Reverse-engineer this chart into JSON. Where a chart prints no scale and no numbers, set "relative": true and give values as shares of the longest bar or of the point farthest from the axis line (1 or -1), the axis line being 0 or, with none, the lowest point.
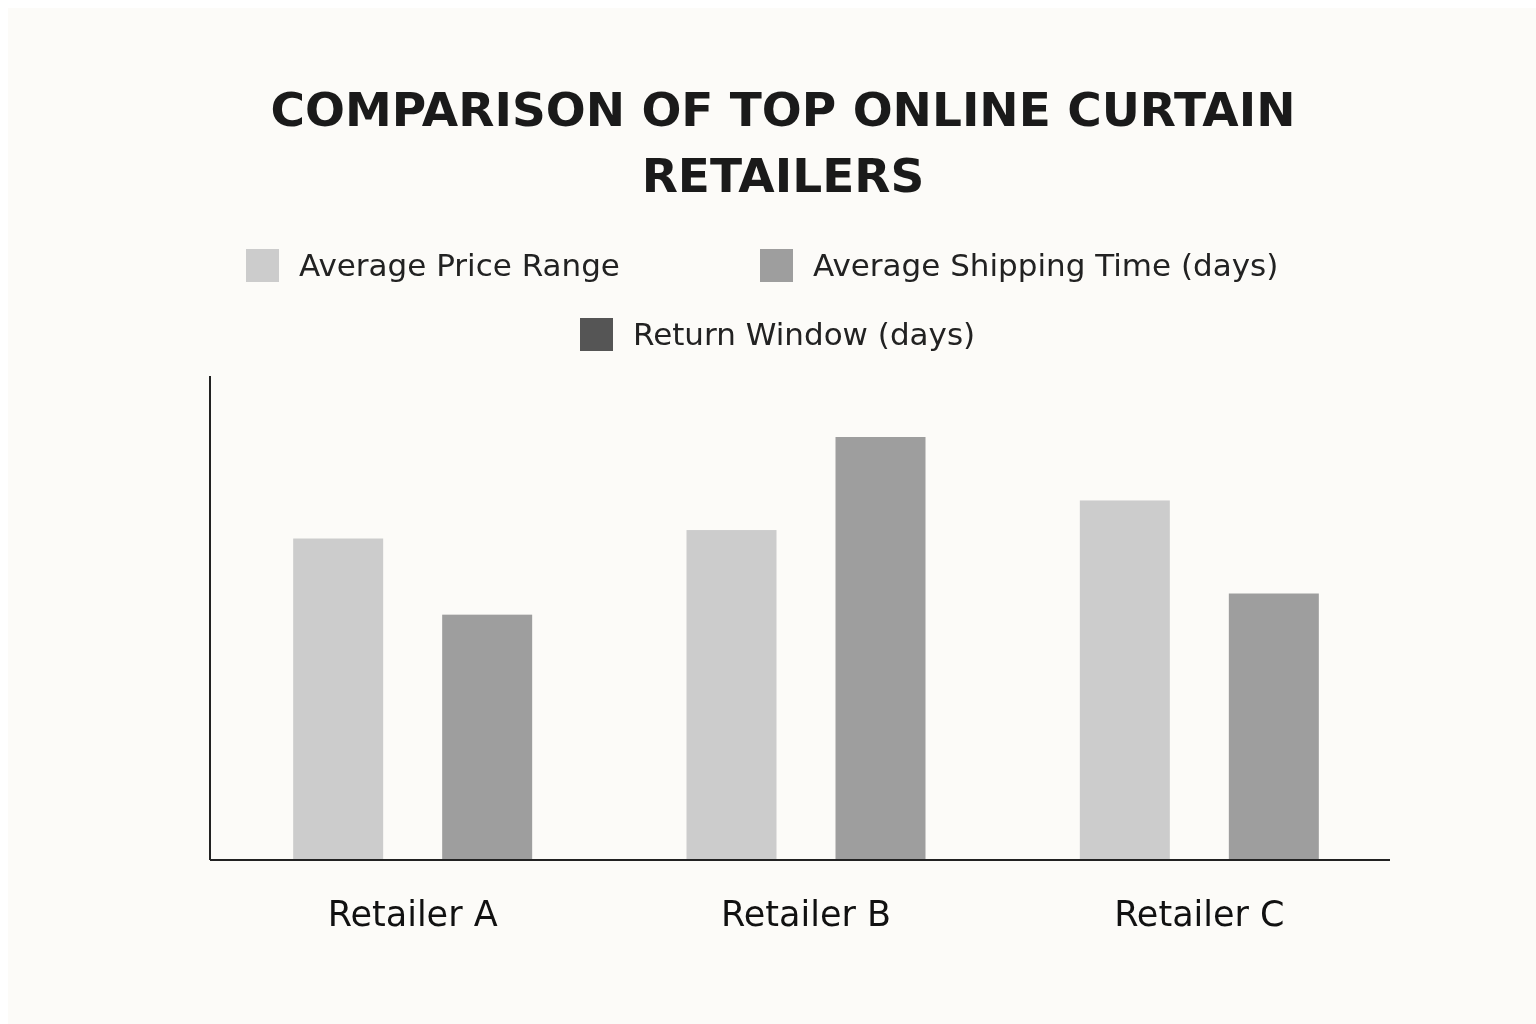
{
  "chart_data": {
    "type": "bar",
    "title": "COMPARISON OF TOP ONLINE CURTAIN RETAILERS",
    "categories": [
      "Retailer A",
      "Retailer B",
      "Retailer C"
    ],
    "relative": true,
    "legend": "top",
    "series": [
      {
        "name": "Average Price Range",
        "color": "#cccccc",
        "values": [
          0.76,
          0.78,
          0.85
        ]
      },
      {
        "name": "Average Shipping Time (days)",
        "color": "#9e9e9e",
        "values": [
          0.58,
          1,
          0.63
        ]
      },
      {
        "name": "Return Window (days)",
        "color": "#555555",
        "values": [
          null,
          null,
          null
        ]
      }
    ]
  }
}
